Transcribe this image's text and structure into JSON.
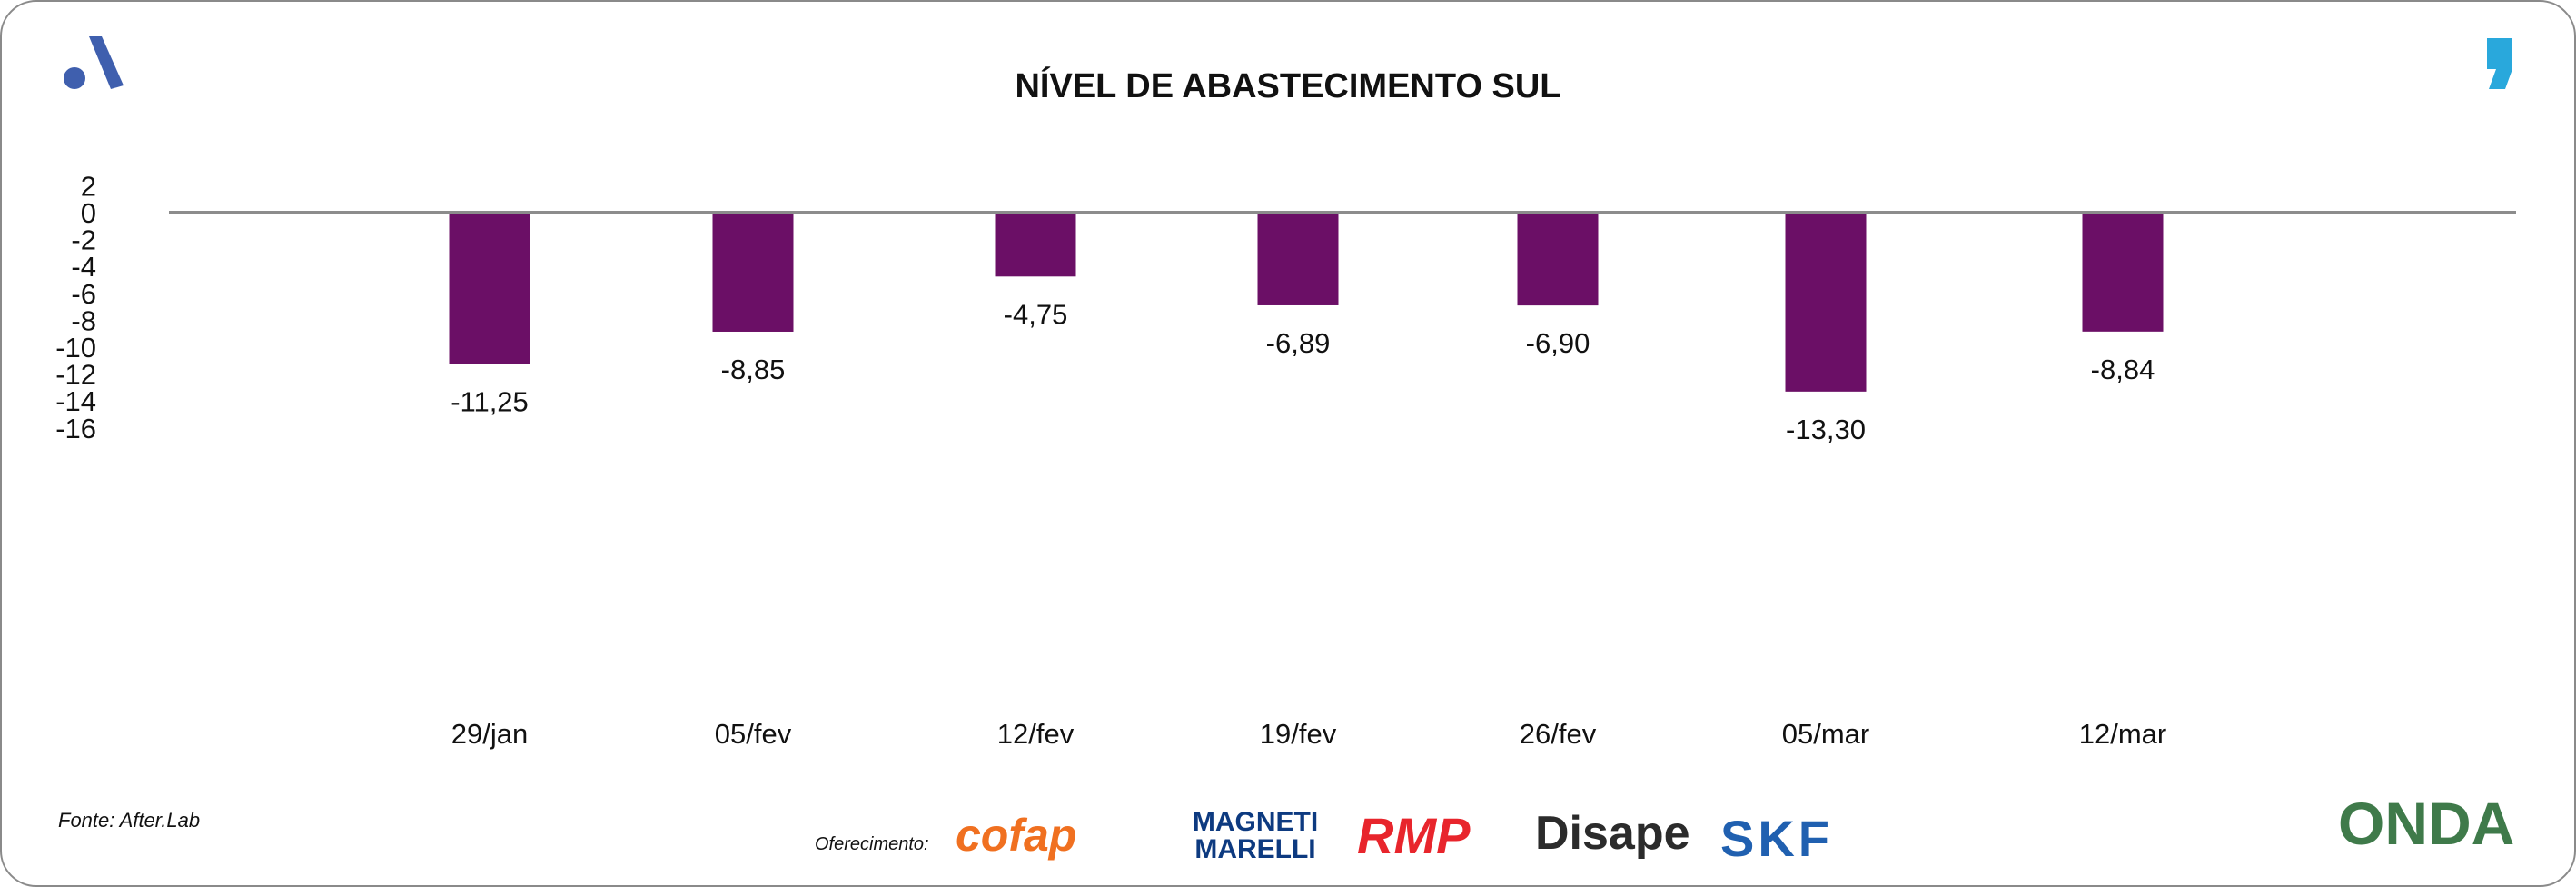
{
  "chart_data": {
    "type": "bar",
    "title": "NÍVEL DE ABASTECIMENTO SUL",
    "categories": [
      "29/jan",
      "05/fev",
      "12/fev",
      "19/fev",
      "26/fev",
      "05/mar",
      "12/mar"
    ],
    "values": [
      -11.25,
      -8.85,
      -4.75,
      -6.89,
      -6.9,
      -13.3,
      -8.84
    ],
    "data_labels": [
      "-11,25",
      "-8,85",
      "-4,75",
      "-6,89",
      "-6,90",
      "-13,30",
      "-8,84"
    ],
    "yticks": [
      2,
      0,
      -2,
      -4,
      -6,
      -8,
      -10,
      -12,
      -14,
      -16
    ],
    "ylim": [
      -16,
      2
    ],
    "xlabel": "",
    "ylabel": "",
    "bar_color": "#6b0f66",
    "grid": false
  },
  "footer": {
    "source": "Fonte: After.Lab",
    "offer_label": "Oferecimento:",
    "sponsors": [
      "cofap",
      "MAGNETI MARELLI",
      "RMP",
      "Disape",
      "SKF"
    ],
    "brand": "ONDA"
  }
}
